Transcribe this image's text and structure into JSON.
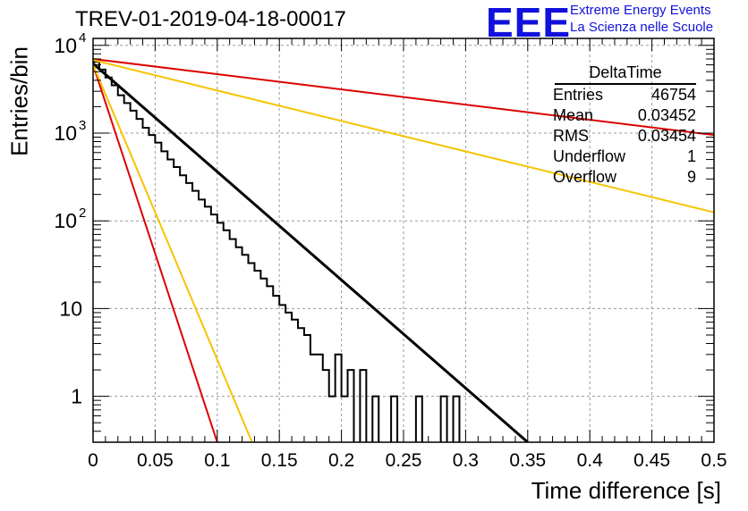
{
  "header": {
    "title": "TREV-01-2019-04-18-00017",
    "logo": "EEE",
    "brand_line1": "Extreme Energy Events",
    "brand_line2": "La Scienza nelle Scuole"
  },
  "stats": {
    "title": "DeltaTime",
    "rows": [
      {
        "label": "Entries",
        "value": "46754"
      },
      {
        "label": "Mean",
        "value": "0.03452"
      },
      {
        "label": "RMS",
        "value": "0.03454"
      },
      {
        "label": "Underflow",
        "value": "1"
      },
      {
        "label": "Overflow",
        "value": "9"
      }
    ]
  },
  "chart_data": {
    "type": "line",
    "title": "TREV-01-2019-04-18-00017",
    "xlabel": "Time difference [s]",
    "ylabel": "Entries/bin",
    "xlim": [
      0,
      0.5
    ],
    "ylim": [
      0.3,
      12000
    ],
    "yscale": "log",
    "grid": true,
    "x_ticks": [
      "0",
      "0.05",
      "0.1",
      "0.15",
      "0.2",
      "0.25",
      "0.3",
      "0.35",
      "0.4",
      "0.45",
      "0.5"
    ],
    "y_ticks": [
      {
        "value": 1,
        "label": "1"
      },
      {
        "value": 10,
        "label": "10"
      },
      {
        "value": 100,
        "label": "10",
        "exp": "2"
      },
      {
        "value": 1000,
        "label": "10",
        "exp": "3"
      },
      {
        "value": 10000,
        "label": "10",
        "exp": "4"
      }
    ],
    "bin_width": 0.005,
    "histogram": [
      6500,
      5300,
      4300,
      3500,
      2700,
      2200,
      1800,
      1450,
      1150,
      950,
      780,
      620,
      500,
      410,
      330,
      270,
      220,
      175,
      145,
      118,
      95,
      78,
      62,
      50,
      41,
      33,
      27,
      22,
      18,
      14,
      11,
      9,
      7.5,
      6,
      5,
      3,
      3,
      2,
      1,
      3,
      1,
      2,
      0,
      2,
      0,
      1,
      0,
      0,
      1,
      0,
      0,
      0,
      1,
      0,
      0,
      0,
      1,
      0,
      1,
      0
    ],
    "fits": [
      {
        "color": "#000000",
        "y0": 6200,
        "y1": 0.3,
        "x1": 0.35
      },
      {
        "color": "#dd0000",
        "y0": 7000,
        "y1": 950,
        "x1": 0.5
      },
      {
        "color": "#f5c400",
        "y0": 6800,
        "y1": 125,
        "x1": 0.5
      },
      {
        "color": "#dd0000",
        "y0": 6000,
        "y1": 0.3,
        "x1": 0.1
      },
      {
        "color": "#f5c400",
        "y0": 6000,
        "y1": 0.3,
        "x1": 0.128
      }
    ]
  }
}
